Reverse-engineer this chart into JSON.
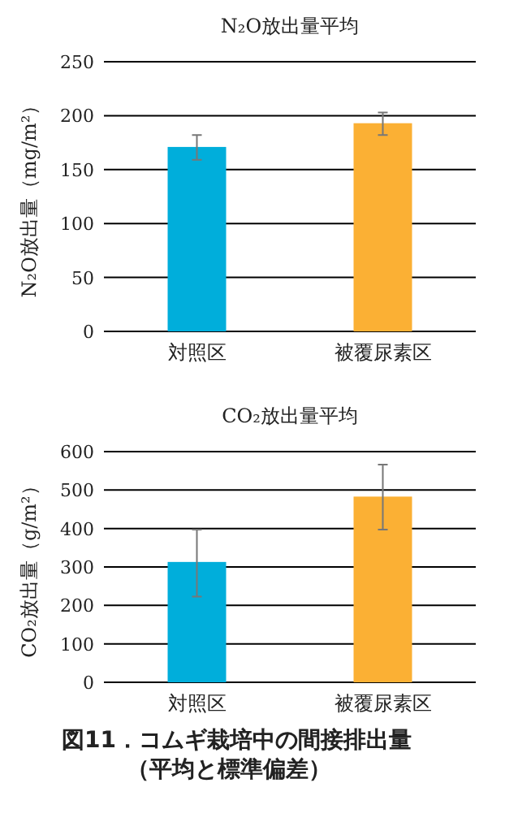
{
  "chart_data": [
    {
      "type": "bar",
      "title": "N₂O放出量平均",
      "ylabel": "N₂O放出量（mg/m²）",
      "categories": [
        "対照区",
        "被覆尿素区"
      ],
      "values": [
        171,
        193
      ],
      "colors": [
        "#00aedb",
        "#fbb034"
      ],
      "errors": [
        [
          159,
          182
        ],
        [
          182,
          203
        ]
      ],
      "ylim": [
        0,
        250
      ],
      "yticks": [
        0,
        50,
        100,
        150,
        200,
        250
      ],
      "grid": "y"
    },
    {
      "type": "bar",
      "title": "CO₂放出量平均",
      "ylabel": "CO₂放出量（g/m²）",
      "categories": [
        "対照区",
        "被覆尿素区"
      ],
      "values": [
        313,
        483
      ],
      "colors": [
        "#00aedb",
        "#fbb034"
      ],
      "errors": [
        [
          223,
          397
        ],
        [
          397,
          566
        ]
      ],
      "ylim": [
        0,
        600
      ],
      "yticks": [
        0,
        100,
        200,
        300,
        400,
        500,
        600
      ],
      "grid": "y",
      "annotations": [
        "図11．コムギ栽培中の間接排出量",
        "（平均と標準偏差）"
      ]
    }
  ]
}
